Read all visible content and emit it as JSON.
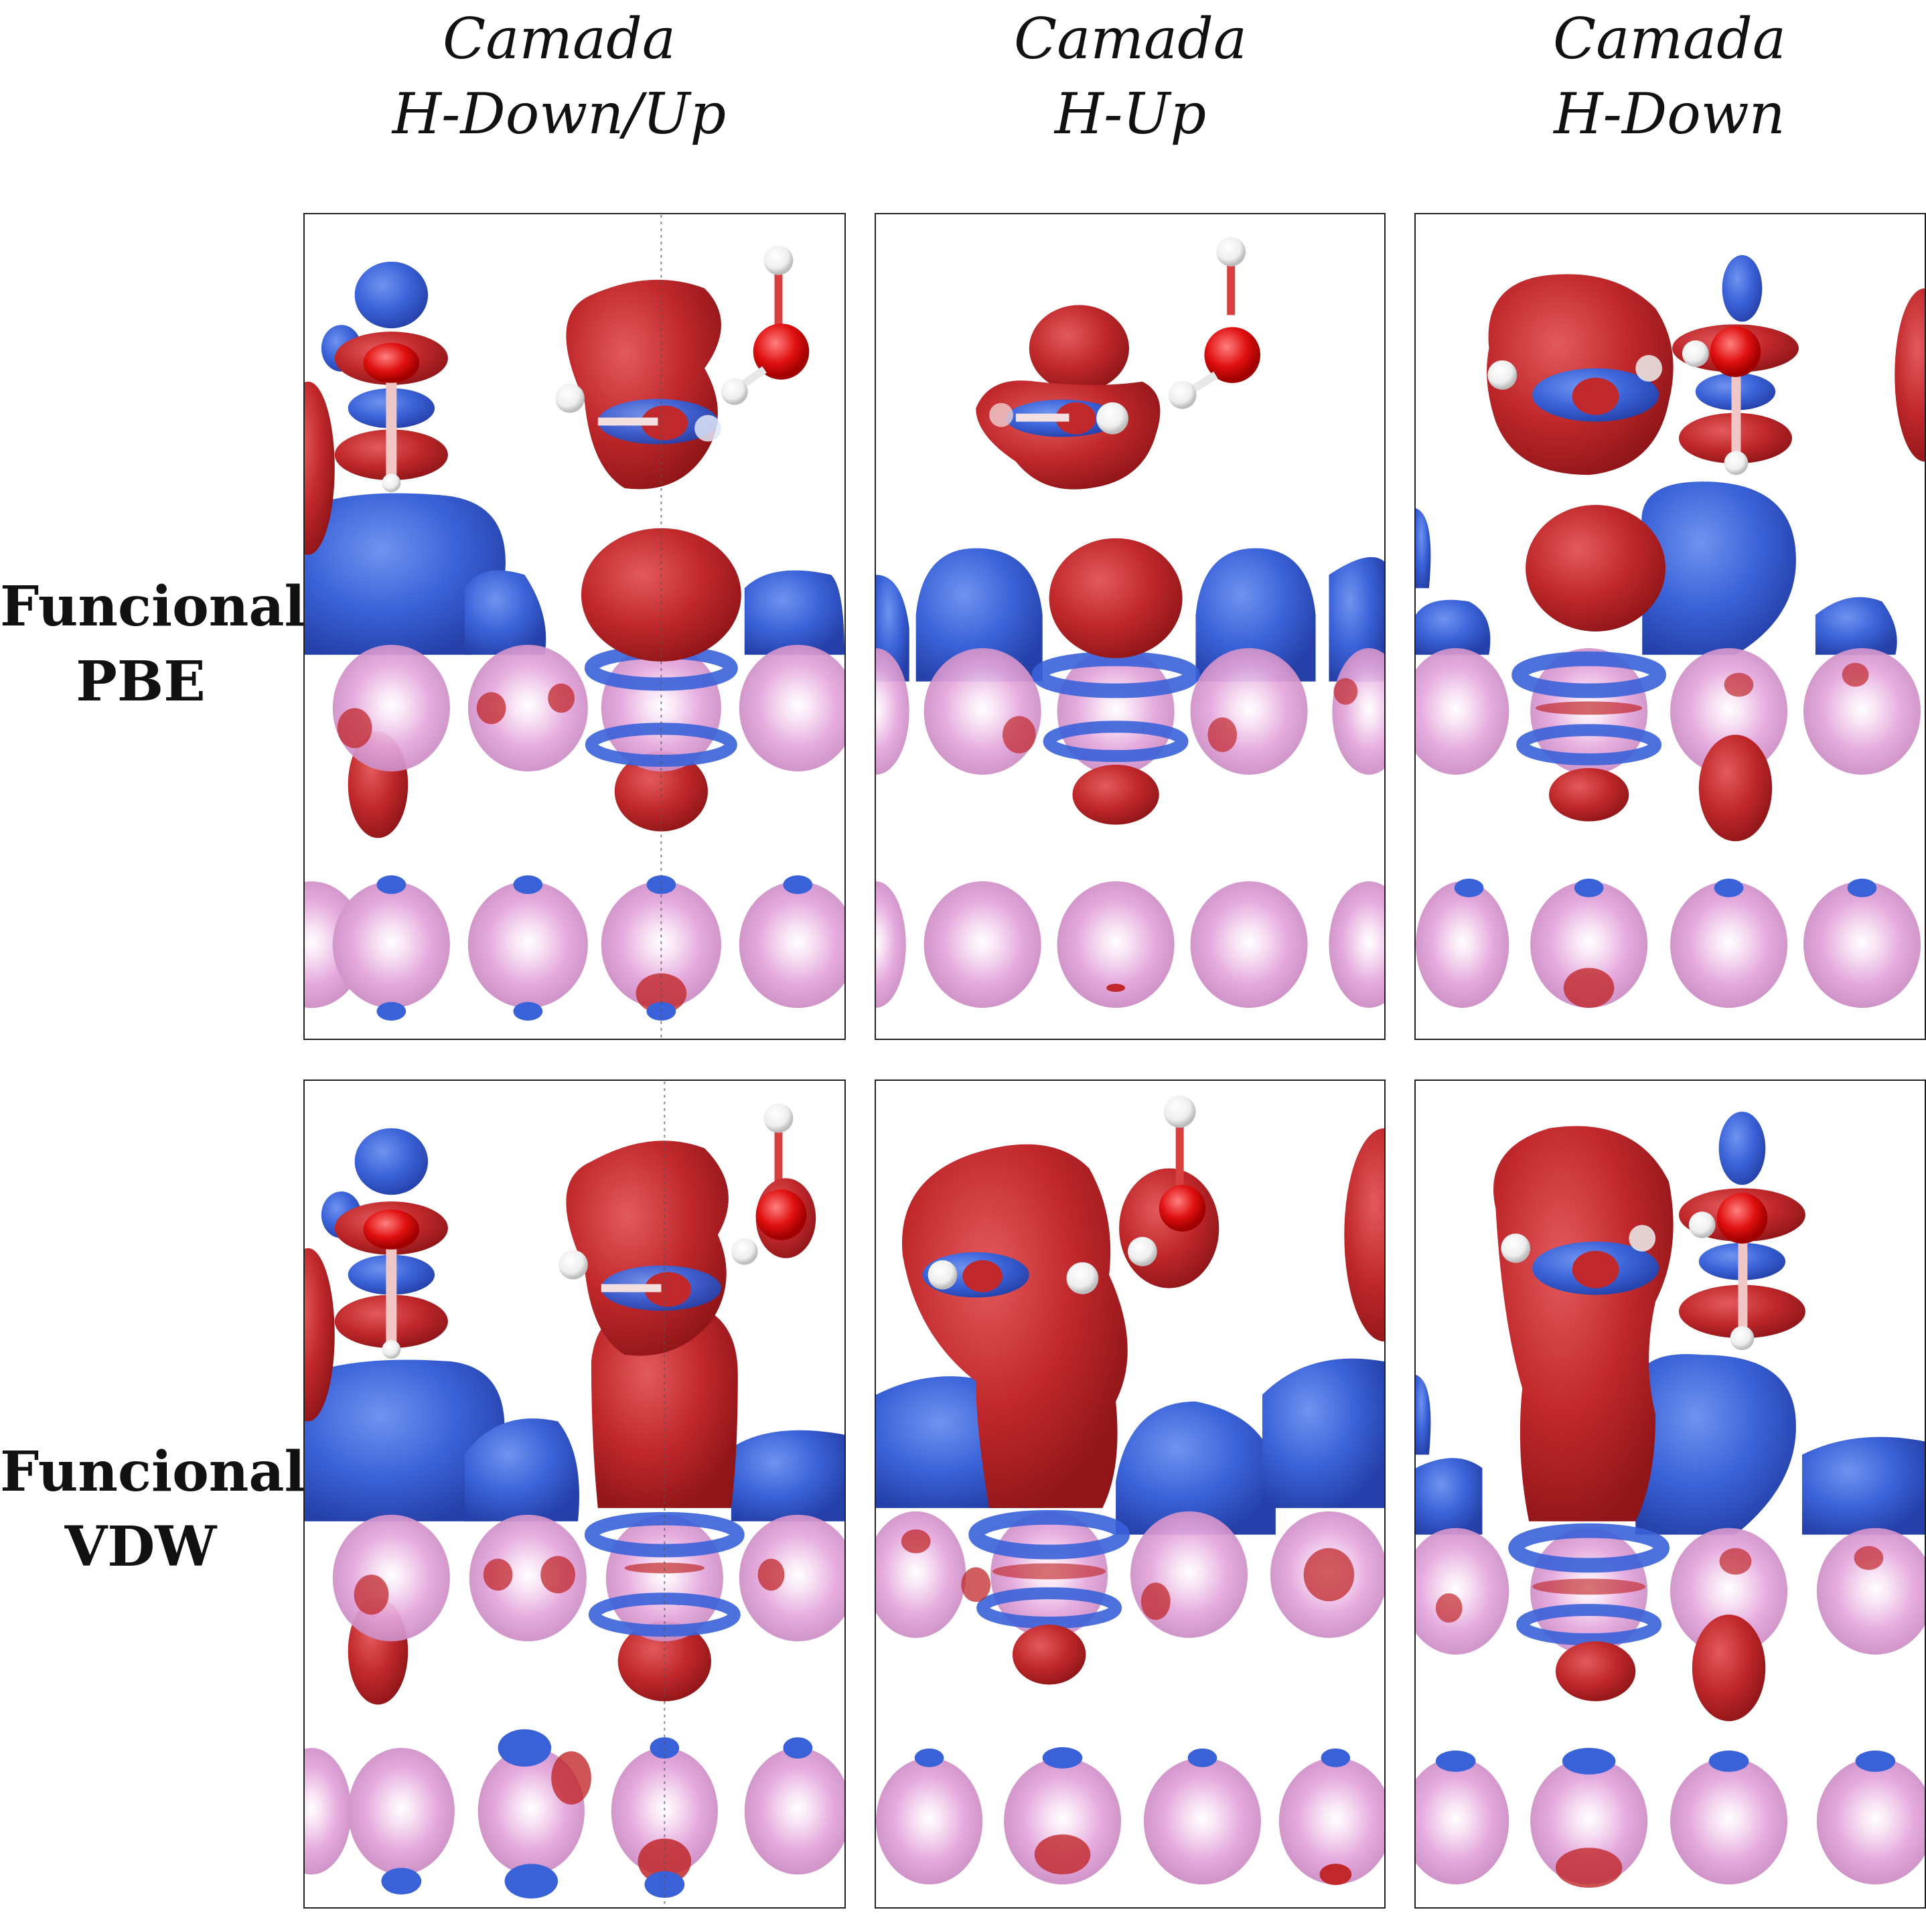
{
  "columns": [
    {
      "line1": "Camada",
      "line2": "H-Down/Up"
    },
    {
      "line1": "Camada",
      "line2": "H-Up"
    },
    {
      "line1": "Camada",
      "line2": "H-Down"
    }
  ],
  "rows": [
    {
      "line1": "Funcional",
      "line2": "PBE"
    },
    {
      "line1": "Funcional",
      "line2": "VDW"
    }
  ],
  "colors": {
    "charge_accumulation": "#c0282b",
    "charge_depletion": "#3a62d8",
    "substrate_atom": "#e4a6dc",
    "oxygen": "#e01010",
    "hydrogen": "#f2f2f2"
  }
}
